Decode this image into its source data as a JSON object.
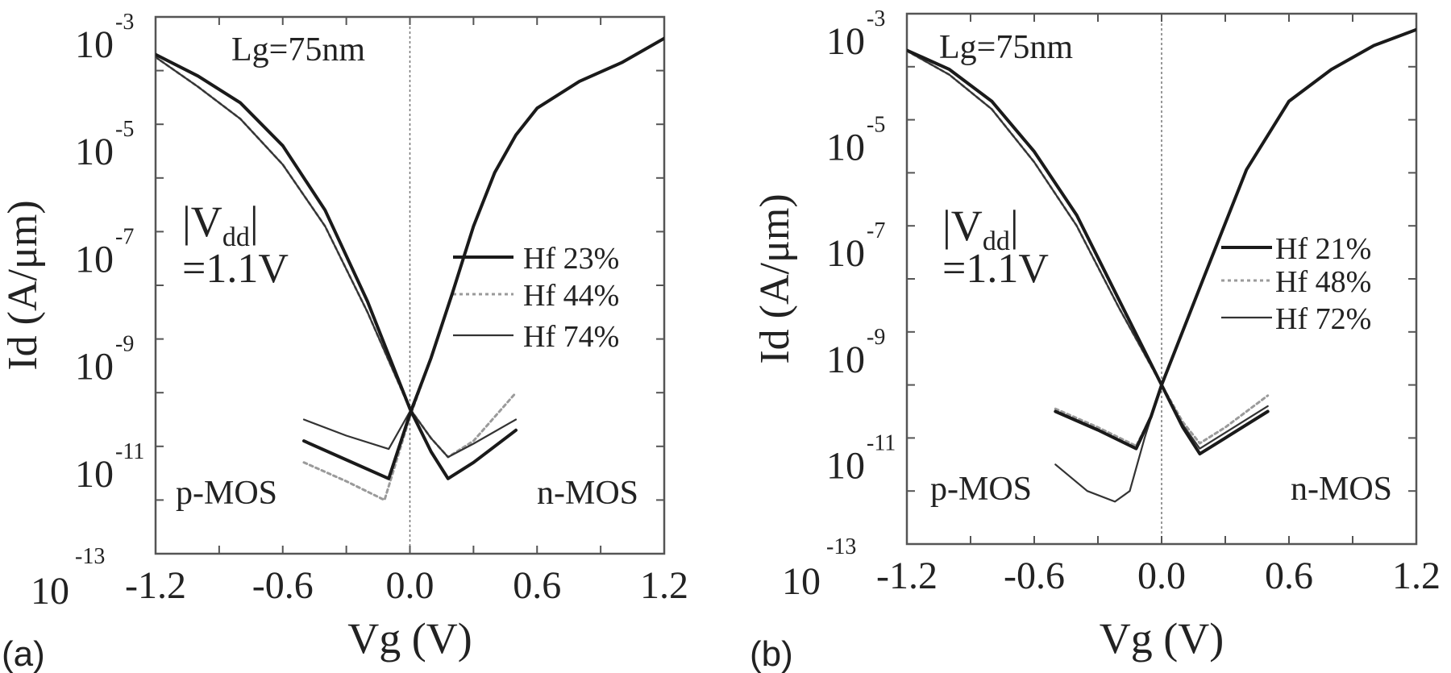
{
  "chart_data": [
    {
      "type": "line",
      "panel_label": "(a)",
      "xlabel": "Vg (V)",
      "ylabel": "Id (A/μm)",
      "yscale": "log",
      "xlim": [
        -1.2,
        1.2
      ],
      "ylim_log10": [
        -13,
        -3
      ],
      "xticks": [
        "-1.2",
        "-0.6",
        "0.0",
        "0.6",
        "1.2"
      ],
      "ytick_exponents": [
        "-3",
        "-5",
        "-7",
        "-9",
        "-11",
        "-13"
      ],
      "ytick_base": "10",
      "annotations": {
        "gate_length": "Lg=75nm",
        "vdd_top": "|V",
        "vdd_sub": "dd",
        "vdd_bar": "|",
        "vdd_value": "=1.1V",
        "pmos": "p-MOS",
        "nmos": "n-MOS"
      },
      "legend_position": "right-middle",
      "series": [
        {
          "name": "Hf 23%",
          "style": "solid-thick",
          "pmos_log10": [
            [
              -1.2,
              -3.7
            ],
            [
              -1.0,
              -4.1
            ],
            [
              -0.8,
              -4.6
            ],
            [
              -0.6,
              -5.4
            ],
            [
              -0.4,
              -6.6
            ],
            [
              -0.2,
              -8.3
            ],
            [
              0.0,
              -10.3
            ],
            [
              0.1,
              -11.1
            ],
            [
              0.18,
              -11.6
            ],
            [
              0.3,
              -11.3
            ],
            [
              0.5,
              -10.7
            ]
          ],
          "nmos_log10": [
            [
              -0.5,
              -10.9
            ],
            [
              -0.3,
              -11.25
            ],
            [
              -0.1,
              -11.6
            ],
            [
              0.0,
              -10.4
            ],
            [
              0.1,
              -9.35
            ],
            [
              0.2,
              -8.15
            ],
            [
              0.3,
              -6.9
            ],
            [
              0.4,
              -5.9
            ],
            [
              0.5,
              -5.2
            ],
            [
              0.6,
              -4.7
            ],
            [
              0.8,
              -4.2
            ],
            [
              1.0,
              -3.85
            ],
            [
              1.2,
              -3.4
            ]
          ]
        },
        {
          "name": "Hf 44%",
          "style": "dotted",
          "pmos_log10": [
            [
              -1.2,
              -3.75
            ],
            [
              -1.0,
              -4.3
            ],
            [
              -0.8,
              -4.9
            ],
            [
              -0.6,
              -5.75
            ],
            [
              -0.4,
              -6.9
            ],
            [
              -0.2,
              -8.5
            ],
            [
              0.0,
              -10.3
            ],
            [
              0.1,
              -10.85
            ],
            [
              0.18,
              -11.2
            ],
            [
              0.3,
              -10.9
            ],
            [
              0.5,
              -10.0
            ]
          ],
          "nmos_log10": [
            [
              -0.5,
              -11.3
            ],
            [
              -0.3,
              -11.65
            ],
            [
              -0.12,
              -12.0
            ],
            [
              0.0,
              -10.45
            ],
            [
              0.1,
              -9.35
            ],
            [
              0.2,
              -8.15
            ],
            [
              0.3,
              -6.9
            ],
            [
              0.4,
              -5.9
            ],
            [
              0.5,
              -5.2
            ],
            [
              0.6,
              -4.7
            ],
            [
              0.8,
              -4.2
            ],
            [
              1.0,
              -3.85
            ],
            [
              1.2,
              -3.4
            ]
          ]
        },
        {
          "name": "Hf 74%",
          "style": "solid-thin",
          "pmos_log10": [
            [
              -1.2,
              -3.75
            ],
            [
              -1.0,
              -4.3
            ],
            [
              -0.8,
              -4.9
            ],
            [
              -0.6,
              -5.75
            ],
            [
              -0.4,
              -6.9
            ],
            [
              -0.2,
              -8.5
            ],
            [
              0.0,
              -10.3
            ],
            [
              0.1,
              -10.85
            ],
            [
              0.18,
              -11.2
            ],
            [
              0.3,
              -10.95
            ],
            [
              0.5,
              -10.5
            ]
          ],
          "nmos_log10": [
            [
              -0.5,
              -10.5
            ],
            [
              -0.3,
              -10.8
            ],
            [
              -0.1,
              -11.05
            ],
            [
              0.0,
              -10.35
            ],
            [
              0.1,
              -9.35
            ],
            [
              0.2,
              -8.15
            ],
            [
              0.3,
              -6.9
            ],
            [
              0.4,
              -5.9
            ],
            [
              0.5,
              -5.2
            ],
            [
              0.6,
              -4.7
            ],
            [
              0.8,
              -4.2
            ],
            [
              1.0,
              -3.85
            ],
            [
              1.2,
              -3.4
            ]
          ]
        }
      ]
    },
    {
      "type": "line",
      "panel_label": "(b)",
      "xlabel": "Vg (V)",
      "ylabel": "Id (A/μm)",
      "yscale": "log",
      "xlim": [
        -1.2,
        1.2
      ],
      "ylim_log10": [
        -13,
        -3
      ],
      "xticks": [
        "-1.2",
        "-0.6",
        "0.0",
        "0.6",
        "1.2"
      ],
      "ytick_exponents": [
        "-3",
        "-5",
        "-7",
        "-9",
        "-11",
        "-13"
      ],
      "ytick_base": "10",
      "annotations": {
        "gate_length": "Lg=75nm",
        "vdd_top": "|V",
        "vdd_sub": "dd",
        "vdd_bar": "|",
        "vdd_value": "=1.1V",
        "pmos": "p-MOS",
        "nmos": "n-MOS"
      },
      "legend_position": "right-middle",
      "series": [
        {
          "name": "Hf 21%",
          "style": "solid-thick",
          "pmos_log10": [
            [
              -1.2,
              -3.69
            ],
            [
              -1.0,
              -4.05
            ],
            [
              -0.8,
              -4.65
            ],
            [
              -0.6,
              -5.6
            ],
            [
              -0.4,
              -6.8
            ],
            [
              -0.2,
              -8.4
            ],
            [
              0.0,
              -10.0
            ],
            [
              0.1,
              -10.8
            ],
            [
              0.18,
              -11.3
            ],
            [
              0.3,
              -11.0
            ],
            [
              0.5,
              -10.5
            ]
          ],
          "nmos_log10": [
            [
              -0.5,
              -10.5
            ],
            [
              -0.3,
              -10.85
            ],
            [
              -0.12,
              -11.2
            ],
            [
              -0.05,
              -10.6
            ],
            [
              0.0,
              -10.0
            ],
            [
              0.2,
              -7.96
            ],
            [
              0.4,
              -5.94
            ],
            [
              0.6,
              -4.65
            ],
            [
              0.8,
              -4.05
            ],
            [
              1.0,
              -3.6
            ],
            [
              1.2,
              -3.3
            ]
          ]
        },
        {
          "name": "Hf 48%",
          "style": "dotted",
          "pmos_log10": [
            [
              -1.2,
              -3.7
            ],
            [
              -1.0,
              -4.15
            ],
            [
              -0.8,
              -4.8
            ],
            [
              -0.6,
              -5.8
            ],
            [
              -0.4,
              -7.0
            ],
            [
              -0.2,
              -8.55
            ],
            [
              0.0,
              -10.0
            ],
            [
              0.1,
              -10.7
            ],
            [
              0.18,
              -11.1
            ],
            [
              0.3,
              -10.8
            ],
            [
              0.5,
              -10.2
            ]
          ],
          "nmos_log10": [
            [
              -0.5,
              -10.45
            ],
            [
              -0.3,
              -10.8
            ],
            [
              -0.12,
              -11.15
            ],
            [
              -0.05,
              -10.6
            ],
            [
              0.0,
              -10.0
            ],
            [
              0.2,
              -7.96
            ],
            [
              0.4,
              -5.94
            ],
            [
              0.6,
              -4.65
            ],
            [
              0.8,
              -4.05
            ],
            [
              1.0,
              -3.6
            ],
            [
              1.2,
              -3.3
            ]
          ]
        },
        {
          "name": "Hf 72%",
          "style": "solid-thin",
          "pmos_log10": [
            [
              -1.2,
              -3.7
            ],
            [
              -1.0,
              -4.15
            ],
            [
              -0.8,
              -4.8
            ],
            [
              -0.6,
              -5.8
            ],
            [
              -0.4,
              -7.0
            ],
            [
              -0.2,
              -8.55
            ],
            [
              0.0,
              -10.0
            ],
            [
              0.1,
              -10.75
            ],
            [
              0.18,
              -11.2
            ],
            [
              0.3,
              -10.9
            ],
            [
              0.5,
              -10.4
            ]
          ],
          "nmos_log10": [
            [
              -0.5,
              -11.5
            ],
            [
              -0.35,
              -12.0
            ],
            [
              -0.22,
              -12.2
            ],
            [
              -0.15,
              -12.0
            ],
            [
              -0.08,
              -11.0
            ],
            [
              0.0,
              -10.0
            ],
            [
              0.2,
              -7.96
            ],
            [
              0.4,
              -5.94
            ],
            [
              0.6,
              -4.65
            ],
            [
              0.8,
              -4.05
            ],
            [
              1.0,
              -3.6
            ],
            [
              1.2,
              -3.3
            ]
          ]
        }
      ]
    }
  ]
}
